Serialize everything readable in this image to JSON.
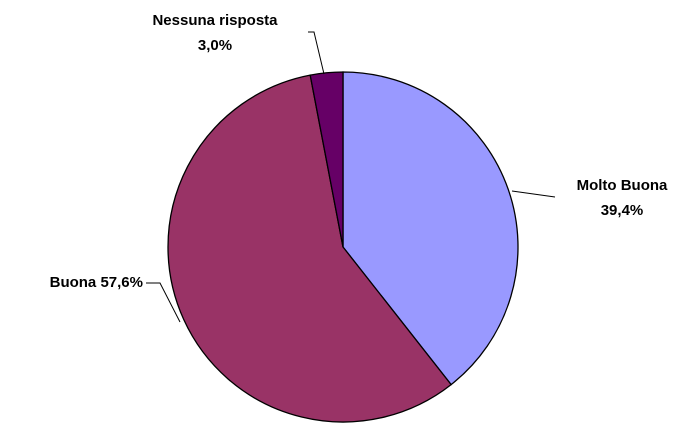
{
  "chart_data": {
    "type": "pie",
    "categories": [
      "Molto Buona",
      "Buona",
      "Nessuna risposta"
    ],
    "values": [
      39.4,
      57.6,
      3.0
    ],
    "value_labels": [
      "39,4%",
      "57,6%",
      "3,0%"
    ],
    "colors": [
      "#9999ff",
      "#993366",
      "#660066"
    ]
  }
}
